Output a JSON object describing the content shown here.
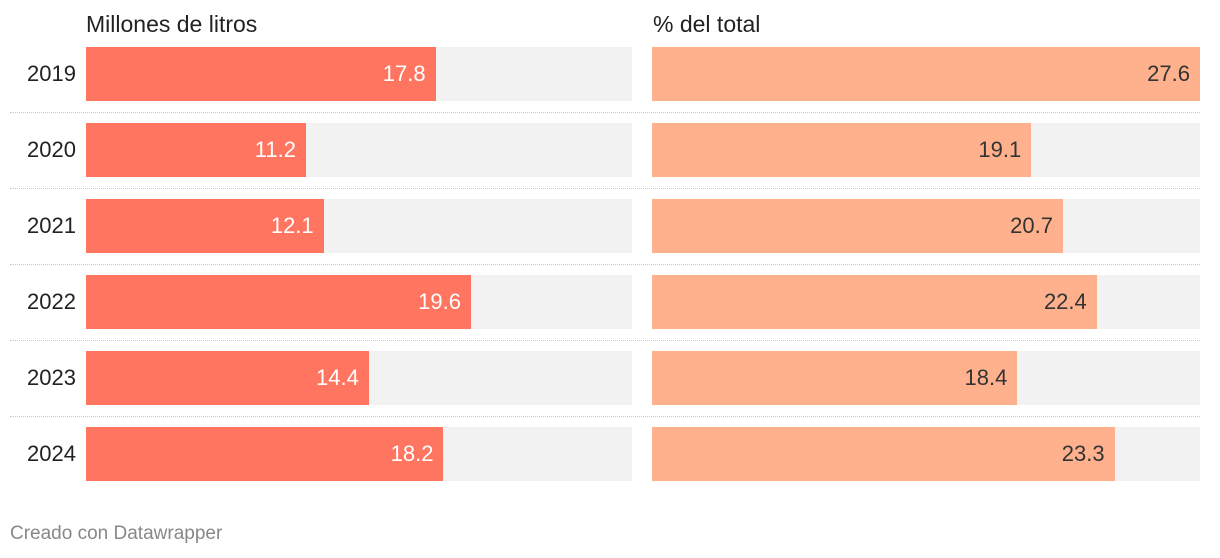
{
  "colors": {
    "series_1": "#ff7560",
    "series_2": "#ffb18e",
    "track": "#f2f2f2",
    "value_light": "#ffffff",
    "value_dark": "#333333"
  },
  "chart_data": {
    "type": "bar",
    "orientation": "horizontal",
    "categories": [
      "2019",
      "2020",
      "2021",
      "2022",
      "2023",
      "2024"
    ],
    "series": [
      {
        "name": "Millones de litros",
        "values": [
          17.8,
          11.2,
          12.1,
          19.6,
          14.4,
          18.2
        ],
        "value_labels": [
          "17.8",
          "11.2",
          "12.1",
          "19.6",
          "14.4",
          "18.2"
        ],
        "xlim": [
          0,
          27.8
        ]
      },
      {
        "name": "% del total",
        "values": [
          27.6,
          19.1,
          20.7,
          22.4,
          18.4,
          23.3
        ],
        "value_labels": [
          "27.6",
          "19.1",
          "20.7",
          "22.4",
          "18.4",
          "23.3"
        ],
        "xlim": [
          0,
          27.6
        ]
      }
    ],
    "legend": "none",
    "grid": false
  },
  "footer": {
    "credit": "Creado con Datawrapper"
  }
}
